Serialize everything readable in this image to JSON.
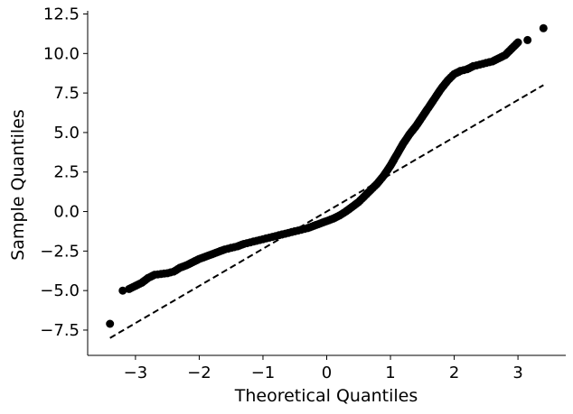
{
  "chart_data": {
    "type": "scatter",
    "xlabel": "Theoretical Quantiles",
    "ylabel": "Sample Quantiles",
    "xlim": [
      -3.75,
      3.75
    ],
    "ylim": [
      -9.1,
      12.7
    ],
    "xticks": [
      -3,
      -2,
      -1,
      0,
      1,
      2,
      3
    ],
    "xtick_labels": [
      "−3",
      "−2",
      "−1",
      "0",
      "1",
      "2",
      "3"
    ],
    "yticks": [
      -7.5,
      -5.0,
      -2.5,
      0.0,
      2.5,
      5.0,
      7.5,
      10.0,
      12.5
    ],
    "ytick_labels": [
      "−7.5",
      "−5.0",
      "−2.5",
      "0.0",
      "2.5",
      "5.0",
      "7.5",
      "10.0",
      "12.5"
    ],
    "grid": false,
    "spines": [
      "left",
      "bottom"
    ],
    "marker_color": "#000000",
    "reference_line": {
      "style": "dashed",
      "color": "#000000",
      "x": [
        -3.4,
        3.4
      ],
      "y": [
        -8.0,
        8.0
      ]
    },
    "points_x": [
      -3.4,
      -3.2,
      -3.1,
      -3.0,
      -2.9,
      -2.8,
      -2.7,
      -2.6,
      -2.5,
      -2.4,
      -2.3,
      -2.2,
      -2.1,
      -2.0,
      -1.9,
      -1.8,
      -1.7,
      -1.6,
      -1.5,
      -1.4,
      -1.3,
      -1.2,
      -1.1,
      -1.0,
      -0.9,
      -0.8,
      -0.7,
      -0.6,
      -0.5,
      -0.4,
      -0.3,
      -0.2,
      -0.1,
      0.0,
      0.1,
      0.2,
      0.3,
      0.4,
      0.5,
      0.6,
      0.7,
      0.8,
      0.9,
      1.0,
      1.1,
      1.2,
      1.3,
      1.4,
      1.5,
      1.6,
      1.7,
      1.8,
      1.9,
      2.0,
      2.1,
      2.2,
      2.3,
      2.4,
      2.5,
      2.6,
      2.7,
      2.8,
      3.0,
      3.15,
      3.4
    ],
    "points_y": [
      -7.1,
      -5.0,
      -4.9,
      -4.7,
      -4.5,
      -4.2,
      -4.0,
      -3.95,
      -3.9,
      -3.8,
      -3.55,
      -3.4,
      -3.2,
      -3.0,
      -2.85,
      -2.7,
      -2.55,
      -2.4,
      -2.3,
      -2.2,
      -2.05,
      -1.95,
      -1.85,
      -1.75,
      -1.65,
      -1.55,
      -1.45,
      -1.35,
      -1.25,
      -1.15,
      -1.05,
      -0.9,
      -0.75,
      -0.6,
      -0.45,
      -0.25,
      0.0,
      0.3,
      0.6,
      1.0,
      1.4,
      1.8,
      2.3,
      2.9,
      3.6,
      4.3,
      4.9,
      5.4,
      6.0,
      6.6,
      7.2,
      7.8,
      8.3,
      8.7,
      8.9,
      9.0,
      9.2,
      9.3,
      9.4,
      9.5,
      9.7,
      9.9,
      10.7,
      10.85,
      11.6
    ]
  }
}
